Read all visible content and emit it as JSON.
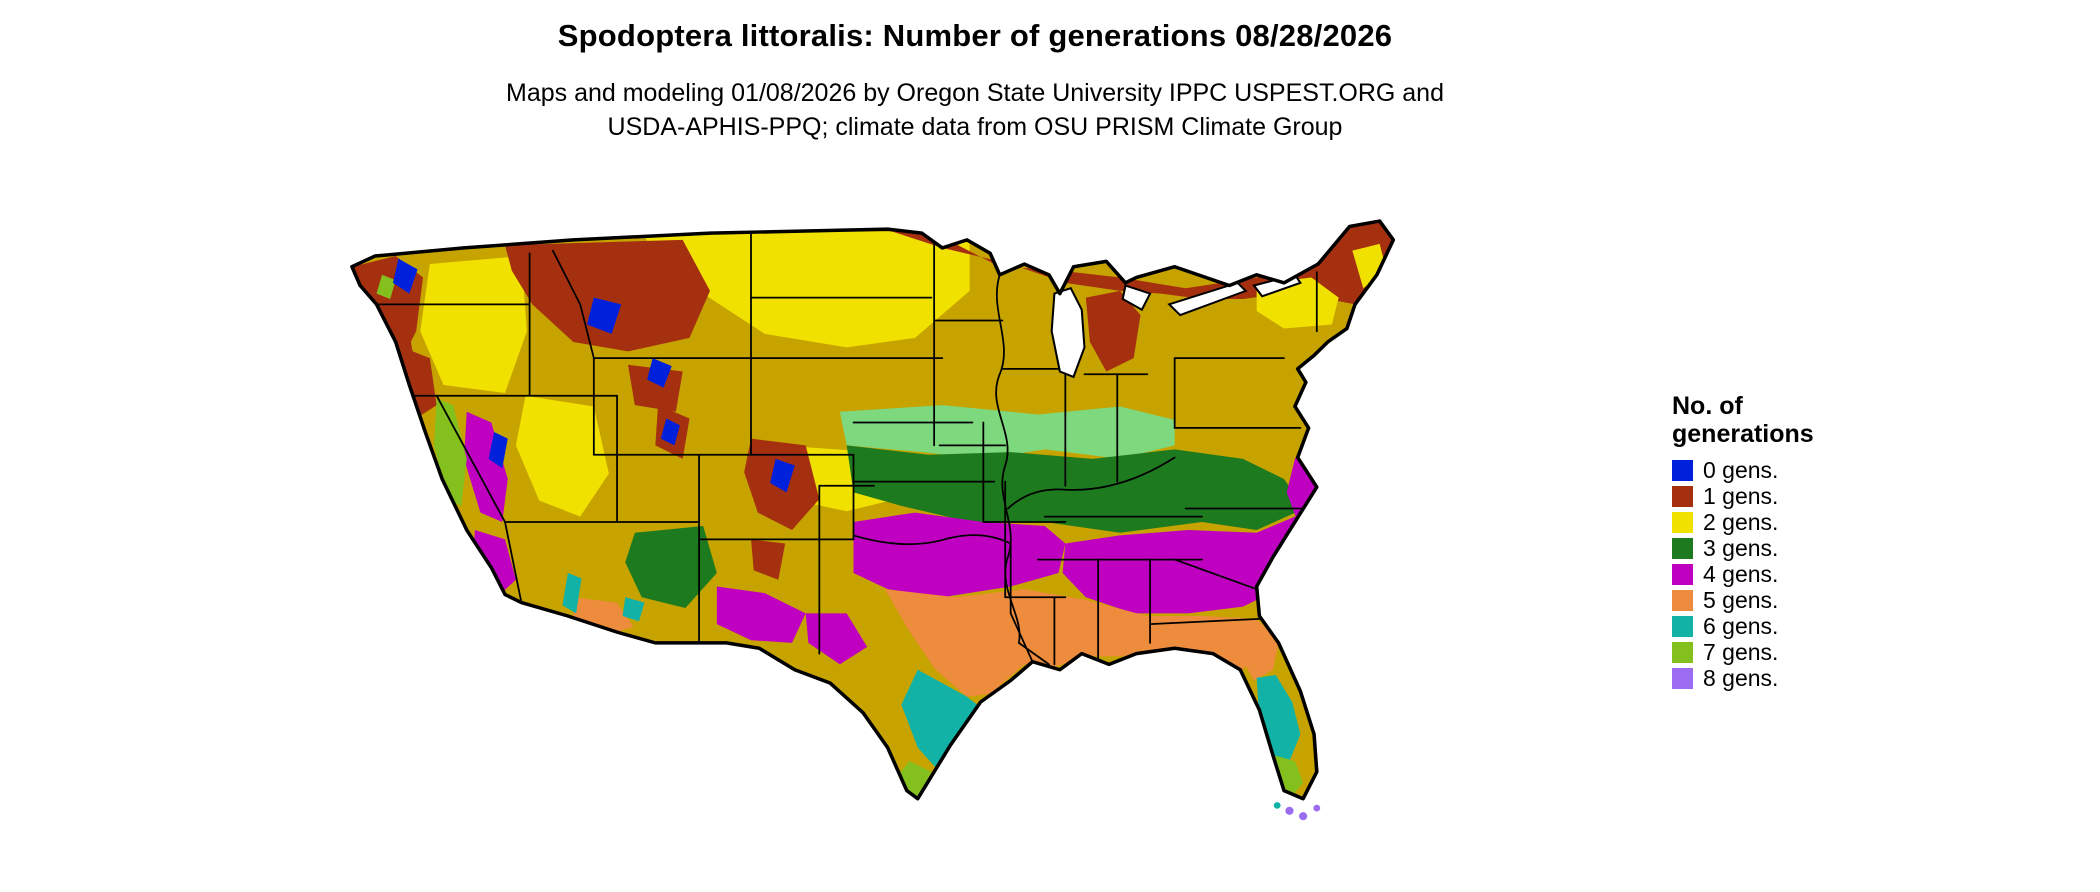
{
  "title": "Spodoptera littoralis: Number of generations 08/28/2026",
  "subtitle": {
    "line1": "Maps and modeling 01/08/2026 by Oregon State University IPPC USPEST.ORG and",
    "line2": "USDA-APHIS-PPQ; climate data from OSU PRISM Climate Group"
  },
  "legend": {
    "title_line1": "No. of",
    "title_line2": "generations",
    "items": [
      {
        "label": "0 gens.",
        "color": "#0021DC"
      },
      {
        "label": "1 gens.",
        "color": "#A53010"
      },
      {
        "label": "2 gens.",
        "color": "#F0E100"
      },
      {
        "label": "3 gens.",
        "color": "#1E7A1E"
      },
      {
        "label": "4 gens.",
        "color": "#C000C0"
      },
      {
        "label": "5 gens.",
        "color": "#ED8C3C"
      },
      {
        "label": "6 gens.",
        "color": "#12B3A6"
      },
      {
        "label": "7 gens.",
        "color": "#83C01E"
      },
      {
        "label": "8 gens.",
        "color": "#9B6BF2"
      }
    ]
  },
  "map": {
    "name": "Continental United States generations raster map",
    "extra_colors": {
      "dark_yellow": "#C7A300",
      "light_green": "#7ED87E",
      "lake_fill": "#FFFFFF",
      "border": "#000000"
    },
    "region_summary": [
      {
        "area": "High mountain crests (Cascades, N Rockies, Colorado Rockies, Sierra)",
        "value": "0 gens."
      },
      {
        "area": "Northern border (N Minnesota-Wisconsin-Michigan, Maine, W Montana, Rockies, NW coast)",
        "value": "1 gens."
      },
      {
        "area": "Northern plains, interior Northwest, Nevada-Utah basins, New England valleys",
        "value": "2 gens."
      },
      {
        "area": "Central Midwest, Ohio Valley, Kentucky-Tennessee-Virginia, Arizona-New Mexico highlands",
        "value": "3 gens."
      },
      {
        "area": "Oklahoma-Arkansas, Southeast piedmont and coastal plain, Sierra Nevada foothills, west Texas",
        "value": "4 gens."
      },
      {
        "area": "Central Texas, Gulf Coast states, north Florida, SW Arizona lowlands",
        "value": "5 gens."
      },
      {
        "area": "South Texas coast, central-south Florida, lower Colorado River",
        "value": "6 gens."
      },
      {
        "area": "Lower Rio Grande Valley tip, south Florida tip",
        "value": "7 gens."
      },
      {
        "area": "Florida Keys",
        "value": "8 gens."
      }
    ]
  }
}
